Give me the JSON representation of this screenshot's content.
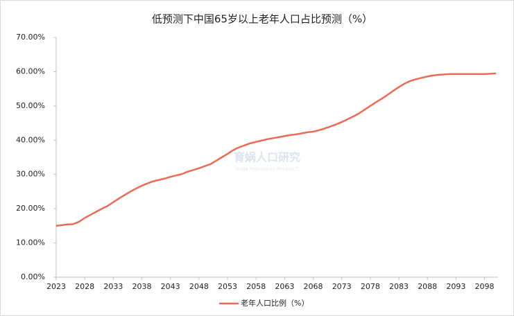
{
  "chart_data": {
    "type": "line",
    "title": "低预测下中国65岁以上老年人口占比预测（%）",
    "watermark": "育娲人口研究",
    "watermark_subtitle": "YuWa Population Research",
    "x": [
      2023,
      2024,
      2025,
      2026,
      2027,
      2028,
      2029,
      2030,
      2031,
      2032,
      2033,
      2034,
      2035,
      2036,
      2037,
      2038,
      2039,
      2040,
      2041,
      2042,
      2043,
      2044,
      2045,
      2046,
      2047,
      2048,
      2049,
      2050,
      2051,
      2052,
      2053,
      2054,
      2055,
      2056,
      2057,
      2058,
      2059,
      2060,
      2061,
      2062,
      2063,
      2064,
      2065,
      2066,
      2067,
      2068,
      2069,
      2070,
      2071,
      2072,
      2073,
      2074,
      2075,
      2076,
      2077,
      2078,
      2079,
      2080,
      2081,
      2082,
      2083,
      2084,
      2085,
      2086,
      2087,
      2088,
      2089,
      2090,
      2091,
      2092,
      2093,
      2094,
      2095,
      2096,
      2097,
      2098,
      2099,
      2100
    ],
    "series": [
      {
        "name": "老年人口比例（%）",
        "color": "#ec6a55",
        "values": [
          15.0,
          15.2,
          15.4,
          15.5,
          16.2,
          17.3,
          18.2,
          19.1,
          20.0,
          20.8,
          21.9,
          23.0,
          24.0,
          25.0,
          25.9,
          26.7,
          27.4,
          28.0,
          28.4,
          28.8,
          29.3,
          29.7,
          30.1,
          30.8,
          31.3,
          31.8,
          32.4,
          33.0,
          34.0,
          35.0,
          36.0,
          37.1,
          37.9,
          38.5,
          39.1,
          39.5,
          39.9,
          40.3,
          40.6,
          40.9,
          41.2,
          41.5,
          41.7,
          42.0,
          42.3,
          42.5,
          42.9,
          43.4,
          44.0,
          44.6,
          45.3,
          46.1,
          46.9,
          47.8,
          48.9,
          50.0,
          51.1,
          52.1,
          53.2,
          54.4,
          55.5,
          56.5,
          57.3,
          57.8,
          58.2,
          58.6,
          58.9,
          59.1,
          59.2,
          59.3,
          59.3,
          59.3,
          59.3,
          59.3,
          59.3,
          59.3,
          59.4,
          59.5
        ]
      }
    ],
    "xlim": [
      2023,
      2100
    ],
    "xticks": [
      2023,
      2028,
      2033,
      2038,
      2043,
      2048,
      2053,
      2058,
      2063,
      2068,
      2073,
      2078,
      2083,
      2088,
      2093,
      2098
    ],
    "ylim": [
      0,
      70
    ],
    "yticks": [
      {
        "value": 0,
        "label": "0.00%"
      },
      {
        "value": 10,
        "label": "10.00%"
      },
      {
        "value": 20,
        "label": "20.00%"
      },
      {
        "value": 30,
        "label": "30.00%"
      },
      {
        "value": 40,
        "label": "40.00%"
      },
      {
        "value": 50,
        "label": "50.00%"
      },
      {
        "value": 60,
        "label": "60.00%"
      },
      {
        "value": 70,
        "label": "70.00%"
      }
    ],
    "legend": "bottom"
  }
}
